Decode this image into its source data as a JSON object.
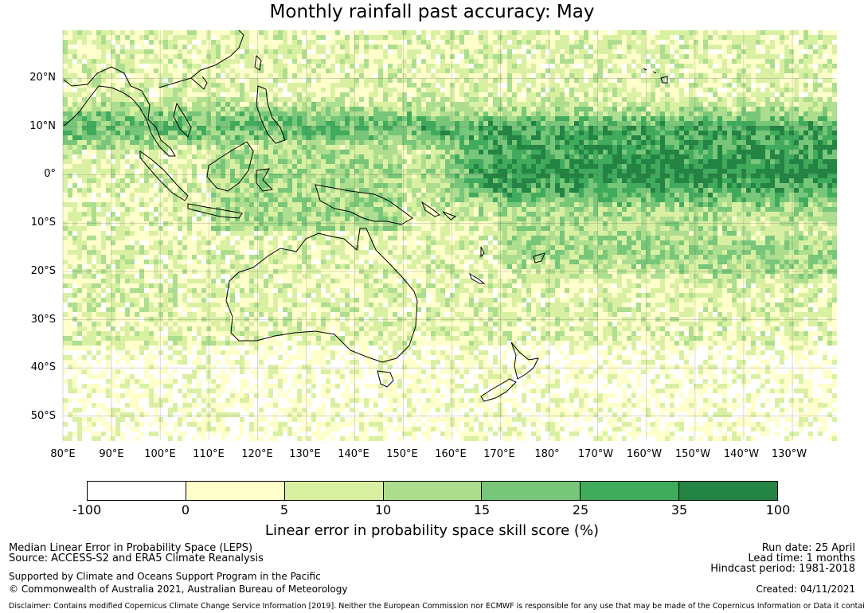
{
  "title": "Monthly rainfall past accuracy: May",
  "map": {
    "lat_labels": [
      "20°N",
      "10°N",
      "0°",
      "10°S",
      "20°S",
      "30°S",
      "40°S",
      "50°S"
    ],
    "lon_labels": [
      "80°E",
      "90°E",
      "100°E",
      "110°E",
      "120°E",
      "130°E",
      "140°E",
      "150°E",
      "160°E",
      "170°E",
      "180°",
      "170°W",
      "160°W",
      "150°W",
      "140°W",
      "130°W"
    ],
    "extent": {
      "lon_min": 80,
      "lon_max": 239,
      "lat_min": -55,
      "lat_max": 30
    }
  },
  "colorbar": {
    "ticks": [
      "-100",
      "0",
      "5",
      "10",
      "15",
      "25",
      "35",
      "100"
    ],
    "colors": [
      "#ffffff",
      "#ffffcc",
      "#d9f0a3",
      "#addd8e",
      "#78c679",
      "#41ab5d",
      "#238443"
    ],
    "label": "Linear error in probability space skill score (%)"
  },
  "footer": {
    "line1": "Median Linear Error in Probability Space (LEPS)",
    "line2": "Source: ACCESS-S2 and ERA5 Climate Reanalysis",
    "line3": "Supported by Climate and Oceans Support Program in the Pacific",
    "line4": "© Commonwealth of Australia 2021, Australian Bureau of Meteorology",
    "run_date": "Run date: 25 April",
    "lead_time": "Lead time: 1 months",
    "hindcast": "Hindcast period: 1981-2018",
    "created": "Created: 04/11/2021",
    "disclaimer": "Disclaimer: Contains modified Copernicus Climate Change Service Information [2019]. Neither the European Commission nor ECMWF is responsible for any use that may be made of the Copernicus Information or Data it contains."
  }
}
